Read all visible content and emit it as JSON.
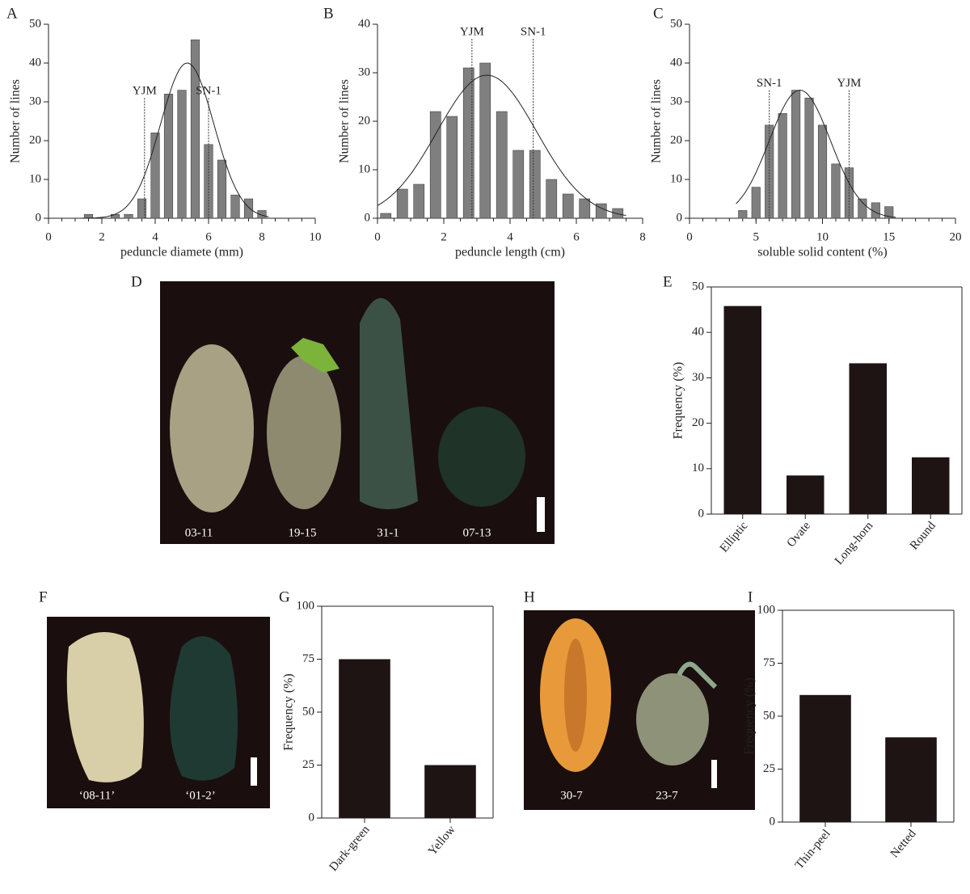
{
  "chart_data": [
    {
      "panel": "A",
      "type": "histogram",
      "xlabel": "peduncle diamete (mm)",
      "ylabel": "Number of lines",
      "bins": [
        1.25,
        1.75,
        2.25,
        2.75,
        3.25,
        3.75,
        4.25,
        4.75,
        5.25,
        5.75,
        6.25,
        6.75,
        7.25,
        7.75,
        8.25
      ],
      "values": [
        1,
        0,
        1,
        1,
        5,
        22,
        32,
        33,
        46,
        19,
        15,
        6,
        5,
        2
      ],
      "color": "#7f7f7f",
      "xlim": [
        0,
        10
      ],
      "xticks": [
        0,
        2,
        4,
        6,
        8,
        10
      ],
      "xminor_step": 0.5,
      "ylim": [
        0,
        50
      ],
      "yticks": [
        0,
        10,
        20,
        30,
        40,
        50
      ],
      "curve": {
        "mean": 5.2,
        "sd": 1.0,
        "peak": 40
      },
      "annotations": [
        {
          "label": "YJM",
          "x": 3.6,
          "y": 31
        },
        {
          "label": "SN-1",
          "x": 6.0,
          "y": 31
        }
      ]
    },
    {
      "panel": "B",
      "type": "histogram",
      "xlabel": "peduncle length (cm)",
      "ylabel": "Number of lines",
      "bins": [
        0,
        0.5,
        1,
        1.5,
        2,
        2.5,
        3,
        3.5,
        4,
        4.5,
        5,
        5.5,
        6,
        6.5,
        7,
        7.5
      ],
      "values": [
        1,
        6,
        7,
        22,
        21,
        31,
        32,
        22,
        14,
        14,
        8,
        5,
        4,
        3,
        2
      ],
      "color": "#7f7f7f",
      "xlim": [
        0,
        8
      ],
      "xticks": [
        0,
        2,
        4,
        6,
        8
      ],
      "xminor_step": 0.5,
      "ylim": [
        0,
        40
      ],
      "yticks": [
        0,
        10,
        20,
        30,
        40
      ],
      "curve": {
        "mean": 3.3,
        "sd": 1.5,
        "peak": 29.5
      },
      "annotations": [
        {
          "label": "YJM",
          "x": 2.85,
          "y": 37
        },
        {
          "label": "SN-1",
          "x": 4.7,
          "y": 37
        }
      ]
    },
    {
      "panel": "C",
      "type": "histogram",
      "xlabel": "soluble solid content (%)",
      "ylabel": "Number of lines",
      "bins": [
        3.5,
        4.5,
        5.5,
        6.5,
        7.5,
        8.5,
        9.5,
        10.5,
        11.5,
        12.5,
        13.5,
        14.5,
        15.5
      ],
      "values": [
        2,
        8,
        24,
        27,
        33,
        31,
        24,
        14,
        13,
        5,
        4,
        3
      ],
      "color": "#7f7f7f",
      "xlim": [
        0,
        20
      ],
      "xticks": [
        0,
        5,
        10,
        15,
        20
      ],
      "xminor_step": 1,
      "ylim": [
        0,
        50
      ],
      "yticks": [
        0,
        10,
        20,
        30,
        40,
        50
      ],
      "curve": {
        "mean": 8.3,
        "sd": 2.3,
        "peak": 33
      },
      "annotations": [
        {
          "label": "SN-1",
          "x": 6.0,
          "y": 33
        },
        {
          "label": "YJM",
          "x": 12.0,
          "y": 33
        }
      ]
    },
    {
      "panel": "E",
      "type": "bar",
      "ylabel": "Frequency (%)",
      "categories": [
        "Elliptic",
        "Ovate",
        "Long-horn",
        "Round"
      ],
      "values": [
        45.8,
        8.5,
        33.2,
        12.5
      ],
      "color": "#1e1414",
      "ylim": [
        0,
        50
      ],
      "yticks": [
        0,
        10,
        20,
        30,
        40,
        50
      ],
      "frame": true
    },
    {
      "panel": "G",
      "type": "bar",
      "ylabel": "Frequency (%)",
      "categories": [
        "Dark-green",
        "Yellow"
      ],
      "values": [
        75,
        25
      ],
      "color": "#1e1414",
      "ylim": [
        0,
        100
      ],
      "yticks": [
        0,
        25,
        50,
        75,
        100
      ],
      "frame": true
    },
    {
      "panel": "I",
      "type": "bar",
      "ylabel": "Frequency (%)",
      "categories": [
        "Thin-peel",
        "Netted"
      ],
      "values": [
        60,
        40
      ],
      "color": "#1e1414",
      "ylim": [
        0,
        100
      ],
      "yticks": [
        0,
        25,
        50,
        75,
        100
      ],
      "frame": true
    }
  ],
  "photos": [
    {
      "panel": "D",
      "labels": [
        "03-11",
        "19-15",
        "31-1",
        "07-13"
      ]
    },
    {
      "panel": "F",
      "labels": [
        "‘08-11’",
        "‘01-2’"
      ]
    },
    {
      "panel": "H",
      "labels": [
        "30-7",
        "23-7"
      ]
    }
  ]
}
